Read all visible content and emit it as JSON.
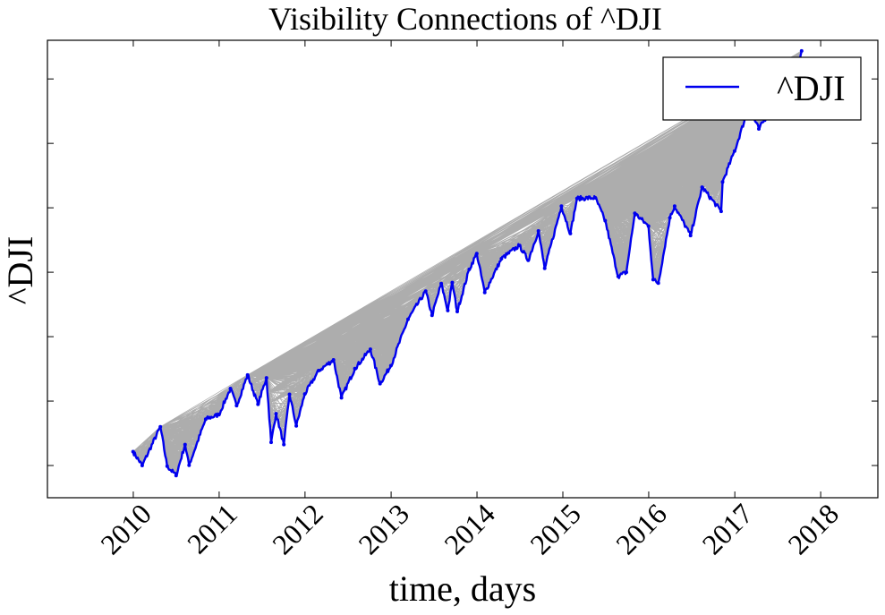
{
  "chart_data": {
    "type": "line",
    "title": "Visibility Connections of ^DJI",
    "xlabel": "time, days",
    "ylabel": "^DJI",
    "x_tick_labels": [
      "2010",
      "2011",
      "2012",
      "2013",
      "2014",
      "2015",
      "2016",
      "2017",
      "2018"
    ],
    "y_tick_labels_shown": false,
    "legend": {
      "placement": "top-right",
      "entries": [
        "^DJI"
      ]
    },
    "grid": false,
    "colors": {
      "series": "#0000ee",
      "visibility_edges": "#000000"
    },
    "xlim": [
      "2009-01-01",
      "2018-09-01"
    ],
    "ylim": [
      9000,
      23200
    ],
    "series": [
      {
        "name": "^DJI",
        "x": [
          "2009-12-31",
          "2010-02-08",
          "2010-04-26",
          "2010-05-25",
          "2010-07-02",
          "2010-08-09",
          "2010-08-26",
          "2010-11-05",
          "2010-12-31",
          "2011-02-18",
          "2011-03-16",
          "2011-05-02",
          "2011-06-15",
          "2011-07-21",
          "2011-08-10",
          "2011-08-31",
          "2011-10-03",
          "2011-10-27",
          "2011-11-25",
          "2011-12-31",
          "2012-02-29",
          "2012-05-01",
          "2012-06-04",
          "2012-07-31",
          "2012-10-05",
          "2012-11-15",
          "2012-12-31",
          "2013-03-14",
          "2013-05-28",
          "2013-06-24",
          "2013-08-02",
          "2013-08-30",
          "2013-09-18",
          "2013-10-09",
          "2013-11-29",
          "2013-12-31",
          "2014-02-03",
          "2014-04-15",
          "2014-06-30",
          "2014-08-07",
          "2014-09-19",
          "2014-10-16",
          "2014-12-26",
          "2015-02-02",
          "2015-03-02",
          "2015-05-19",
          "2015-06-30",
          "2015-08-24",
          "2015-09-28",
          "2015-11-03",
          "2015-12-31",
          "2016-01-20",
          "2016-02-11",
          "2016-03-31",
          "2016-04-20",
          "2016-06-27",
          "2016-08-15",
          "2016-11-04",
          "2016-11-10",
          "2016-12-31",
          "2017-03-01",
          "2017-04-13",
          "2017-06-30",
          "2017-08-07",
          "2017-09-05",
          "2017-10-12"
        ],
        "y": [
          10430,
          10000,
          11200,
          9980,
          9690,
          10650,
          10010,
          11440,
          11580,
          12390,
          11860,
          12810,
          11900,
          12720,
          10720,
          11610,
          10650,
          12210,
          11230,
          12220,
          12950,
          13280,
          12100,
          13010,
          13610,
          12540,
          13100,
          14540,
          15410,
          14660,
          15650,
          14810,
          15680,
          14780,
          16090,
          16580,
          15370,
          16420,
          16830,
          16370,
          17280,
          16120,
          18050,
          17200,
          18290,
          18310,
          17600,
          15870,
          16000,
          17830,
          17430,
          15770,
          15660,
          17690,
          18050,
          17140,
          18640,
          17890,
          18800,
          19760,
          21120,
          20450,
          21350,
          22100,
          21750,
          22870
        ]
      }
    ]
  }
}
